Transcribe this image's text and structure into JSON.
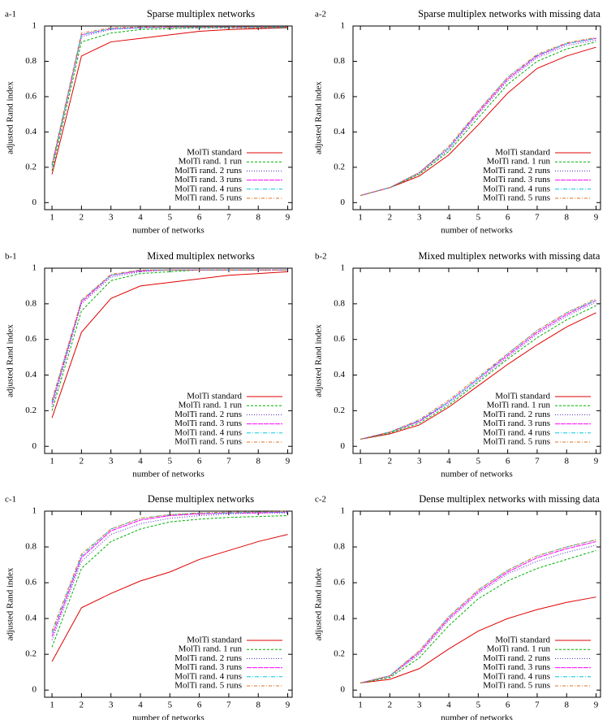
{
  "chart_data": [
    {
      "type": "line",
      "panel": "a-1",
      "title": "Sparse multiplex networks",
      "xlabel": "number of networks",
      "ylabel": "adjusted Rand index",
      "x": [
        1,
        2,
        3,
        4,
        5,
        6,
        7,
        8,
        9
      ],
      "xlim": [
        0.75,
        9.15
      ],
      "xticks": [
        1,
        2,
        3,
        4,
        5,
        6,
        7,
        8,
        9
      ],
      "ylim": [
        -0.04,
        1
      ],
      "yticks": [
        0,
        0.2,
        0.4,
        0.6,
        0.8,
        1
      ],
      "legend": "lower right",
      "series": [
        {
          "name": "MolTi standard",
          "color": "#e00000",
          "values": [
            0.16,
            0.83,
            0.91,
            0.93,
            0.95,
            0.97,
            0.98,
            0.985,
            0.99
          ]
        },
        {
          "name": "MolTi rand. 1 run",
          "color": "#00b000",
          "values": [
            0.18,
            0.91,
            0.96,
            0.98,
            0.985,
            0.99,
            0.99,
            0.99,
            0.99
          ]
        },
        {
          "name": "MolTi rand. 2 runs",
          "color": "#5020c0",
          "values": [
            0.2,
            0.94,
            0.98,
            0.99,
            0.99,
            0.99,
            0.99,
            0.99,
            0.99
          ]
        },
        {
          "name": "MolTi rand. 3 runs",
          "color": "#ff00ff",
          "values": [
            0.21,
            0.95,
            0.985,
            0.99,
            0.995,
            0.995,
            0.995,
            0.995,
            0.995
          ]
        },
        {
          "name": "MolTi rand. 4 runs",
          "color": "#00c8e0",
          "values": [
            0.21,
            0.95,
            0.985,
            0.99,
            0.995,
            0.995,
            0.995,
            0.995,
            0.995
          ]
        },
        {
          "name": "MolTi rand. 5 runs",
          "color": "#e07020",
          "values": [
            0.22,
            0.96,
            0.99,
            0.995,
            0.995,
            0.995,
            0.995,
            0.995,
            0.995
          ]
        }
      ]
    },
    {
      "type": "line",
      "panel": "a-2",
      "title": "Sparse multiplex networks with missing data",
      "xlabel": "number of networks",
      "ylabel": "adjusted Rand index",
      "x": [
        1,
        2,
        3,
        4,
        5,
        6,
        7,
        8,
        9
      ],
      "xlim": [
        0.75,
        9.15
      ],
      "xticks": [
        1,
        2,
        3,
        4,
        5,
        6,
        7,
        8,
        9
      ],
      "ylim": [
        -0.04,
        1
      ],
      "yticks": [
        0,
        0.2,
        0.4,
        0.6,
        0.8,
        1
      ],
      "legend": "lower right",
      "series": [
        {
          "name": "MolTi standard",
          "color": "#e00000",
          "values": [
            0.04,
            0.085,
            0.15,
            0.27,
            0.44,
            0.62,
            0.76,
            0.83,
            0.88
          ]
        },
        {
          "name": "MolTi rand. 1 run",
          "color": "#00b000",
          "values": [
            0.04,
            0.085,
            0.16,
            0.29,
            0.48,
            0.67,
            0.8,
            0.87,
            0.91
          ]
        },
        {
          "name": "MolTi rand. 2 runs",
          "color": "#5020c0",
          "values": [
            0.04,
            0.085,
            0.165,
            0.3,
            0.5,
            0.69,
            0.82,
            0.89,
            0.92
          ]
        },
        {
          "name": "MolTi rand. 3 runs",
          "color": "#ff00ff",
          "values": [
            0.04,
            0.085,
            0.17,
            0.31,
            0.51,
            0.7,
            0.83,
            0.9,
            0.93
          ]
        },
        {
          "name": "MolTi rand. 4 runs",
          "color": "#00c8e0",
          "values": [
            0.04,
            0.085,
            0.17,
            0.31,
            0.52,
            0.71,
            0.835,
            0.9,
            0.93
          ]
        },
        {
          "name": "MolTi rand. 5 runs",
          "color": "#e07020",
          "values": [
            0.04,
            0.085,
            0.17,
            0.32,
            0.52,
            0.71,
            0.84,
            0.905,
            0.935
          ]
        }
      ]
    },
    {
      "type": "line",
      "panel": "b-1",
      "title": "Mixed multiplex networks",
      "xlabel": "number of networks",
      "ylabel": "adjusted Rand index",
      "x": [
        1,
        2,
        3,
        4,
        5,
        6,
        7,
        8,
        9
      ],
      "xlim": [
        0.75,
        9.15
      ],
      "xticks": [
        1,
        2,
        3,
        4,
        5,
        6,
        7,
        8,
        9
      ],
      "ylim": [
        -0.04,
        1
      ],
      "yticks": [
        0,
        0.2,
        0.4,
        0.6,
        0.8,
        1
      ],
      "legend": "lower right",
      "series": [
        {
          "name": "MolTi standard",
          "color": "#e00000",
          "values": [
            0.16,
            0.64,
            0.83,
            0.9,
            0.92,
            0.94,
            0.96,
            0.97,
            0.98
          ]
        },
        {
          "name": "MolTi rand. 1 run",
          "color": "#00b000",
          "values": [
            0.2,
            0.76,
            0.93,
            0.97,
            0.98,
            0.99,
            0.99,
            0.99,
            0.99
          ]
        },
        {
          "name": "MolTi rand. 2 runs",
          "color": "#5020c0",
          "values": [
            0.22,
            0.8,
            0.95,
            0.98,
            0.99,
            0.99,
            0.99,
            0.99,
            0.99
          ]
        },
        {
          "name": "MolTi rand. 3 runs",
          "color": "#ff00ff",
          "values": [
            0.24,
            0.81,
            0.96,
            0.985,
            0.99,
            0.99,
            0.99,
            0.99,
            0.99
          ]
        },
        {
          "name": "MolTi rand. 4 runs",
          "color": "#00c8e0",
          "values": [
            0.25,
            0.82,
            0.96,
            0.99,
            0.99,
            0.99,
            0.99,
            0.99,
            0.99
          ]
        },
        {
          "name": "MolTi rand. 5 runs",
          "color": "#e07020",
          "values": [
            0.26,
            0.82,
            0.965,
            0.99,
            0.99,
            0.99,
            0.99,
            0.99,
            0.99
          ]
        }
      ]
    },
    {
      "type": "line",
      "panel": "b-2",
      "title": "Mixed multiplex networks with missing data",
      "xlabel": "number of networks",
      "ylabel": "adjusted Rand index",
      "x": [
        1,
        2,
        3,
        4,
        5,
        6,
        7,
        8,
        9
      ],
      "xlim": [
        0.75,
        9.15
      ],
      "xticks": [
        1,
        2,
        3,
        4,
        5,
        6,
        7,
        8,
        9
      ],
      "ylim": [
        -0.04,
        1
      ],
      "yticks": [
        0,
        0.2,
        0.4,
        0.6,
        0.8,
        1
      ],
      "legend": "lower right",
      "series": [
        {
          "name": "MolTi standard",
          "color": "#e00000",
          "values": [
            0.04,
            0.07,
            0.12,
            0.22,
            0.34,
            0.46,
            0.57,
            0.67,
            0.75
          ]
        },
        {
          "name": "MolTi rand. 1 run",
          "color": "#00b000",
          "values": [
            0.04,
            0.075,
            0.13,
            0.23,
            0.36,
            0.49,
            0.61,
            0.71,
            0.79
          ]
        },
        {
          "name": "MolTi rand. 2 runs",
          "color": "#5020c0",
          "values": [
            0.04,
            0.08,
            0.14,
            0.24,
            0.37,
            0.5,
            0.63,
            0.73,
            0.81
          ]
        },
        {
          "name": "MolTi rand. 3 runs",
          "color": "#ff00ff",
          "values": [
            0.04,
            0.08,
            0.14,
            0.25,
            0.38,
            0.51,
            0.64,
            0.74,
            0.82
          ]
        },
        {
          "name": "MolTi rand. 4 runs",
          "color": "#00c8e0",
          "values": [
            0.04,
            0.08,
            0.145,
            0.25,
            0.38,
            0.52,
            0.65,
            0.75,
            0.82
          ]
        },
        {
          "name": "MolTi rand. 5 runs",
          "color": "#e07020",
          "values": [
            0.04,
            0.08,
            0.15,
            0.26,
            0.39,
            0.52,
            0.65,
            0.75,
            0.83
          ]
        }
      ]
    },
    {
      "type": "line",
      "panel": "c-1",
      "title": "Dense multiplex networks",
      "xlabel": "number of networks",
      "ylabel": "adjusted Rand index",
      "x": [
        1,
        2,
        3,
        4,
        5,
        6,
        7,
        8,
        9
      ],
      "xlim": [
        0.75,
        9.15
      ],
      "xticks": [
        1,
        2,
        3,
        4,
        5,
        6,
        7,
        8,
        9
      ],
      "ylim": [
        -0.04,
        1
      ],
      "yticks": [
        0,
        0.2,
        0.4,
        0.6,
        0.8,
        1
      ],
      "legend": "lower right",
      "series": [
        {
          "name": "MolTi standard",
          "color": "#e00000",
          "values": [
            0.16,
            0.46,
            0.54,
            0.61,
            0.66,
            0.73,
            0.78,
            0.83,
            0.87
          ]
        },
        {
          "name": "MolTi rand. 1 run",
          "color": "#00b000",
          "values": [
            0.24,
            0.68,
            0.83,
            0.9,
            0.94,
            0.955,
            0.965,
            0.97,
            0.975
          ]
        },
        {
          "name": "MolTi rand. 2 runs",
          "color": "#5020c0",
          "values": [
            0.28,
            0.72,
            0.87,
            0.93,
            0.96,
            0.975,
            0.985,
            0.99,
            0.99
          ]
        },
        {
          "name": "MolTi rand. 3 runs",
          "color": "#ff00ff",
          "values": [
            0.3,
            0.74,
            0.89,
            0.95,
            0.975,
            0.985,
            0.99,
            0.99,
            0.995
          ]
        },
        {
          "name": "MolTi rand. 4 runs",
          "color": "#00c8e0",
          "values": [
            0.32,
            0.75,
            0.9,
            0.96,
            0.98,
            0.99,
            0.99,
            0.995,
            0.995
          ]
        },
        {
          "name": "MolTi rand. 5 runs",
          "color": "#e07020",
          "values": [
            0.33,
            0.76,
            0.9,
            0.96,
            0.98,
            0.99,
            0.995,
            0.995,
            1
          ]
        }
      ]
    },
    {
      "type": "line",
      "panel": "c-2",
      "title": "Dense multiplex networks with missing data",
      "xlabel": "number of networks",
      "ylabel": "adjusted Rand index",
      "x": [
        1,
        2,
        3,
        4,
        5,
        6,
        7,
        8,
        9
      ],
      "xlim": [
        0.75,
        9.15
      ],
      "xticks": [
        1,
        2,
        3,
        4,
        5,
        6,
        7,
        8,
        9
      ],
      "ylim": [
        -0.04,
        1
      ],
      "yticks": [
        0,
        0.2,
        0.4,
        0.6,
        0.8,
        1
      ],
      "legend": "lower right",
      "series": [
        {
          "name": "MolTi standard",
          "color": "#e00000",
          "values": [
            0.04,
            0.06,
            0.12,
            0.23,
            0.33,
            0.4,
            0.45,
            0.49,
            0.52
          ]
        },
        {
          "name": "MolTi rand. 1 run",
          "color": "#00b000",
          "values": [
            0.04,
            0.07,
            0.18,
            0.36,
            0.51,
            0.61,
            0.68,
            0.73,
            0.78
          ]
        },
        {
          "name": "MolTi rand. 2 runs",
          "color": "#5020c0",
          "values": [
            0.04,
            0.075,
            0.2,
            0.39,
            0.54,
            0.65,
            0.72,
            0.77,
            0.81
          ]
        },
        {
          "name": "MolTi rand. 3 runs",
          "color": "#ff00ff",
          "values": [
            0.04,
            0.08,
            0.21,
            0.4,
            0.55,
            0.66,
            0.74,
            0.79,
            0.83
          ]
        },
        {
          "name": "MolTi rand. 4 runs",
          "color": "#00c8e0",
          "values": [
            0.04,
            0.08,
            0.22,
            0.41,
            0.56,
            0.67,
            0.75,
            0.8,
            0.84
          ]
        },
        {
          "name": "MolTi rand. 5 runs",
          "color": "#e07020",
          "values": [
            0.04,
            0.08,
            0.22,
            0.41,
            0.56,
            0.67,
            0.75,
            0.8,
            0.84
          ]
        }
      ]
    }
  ]
}
